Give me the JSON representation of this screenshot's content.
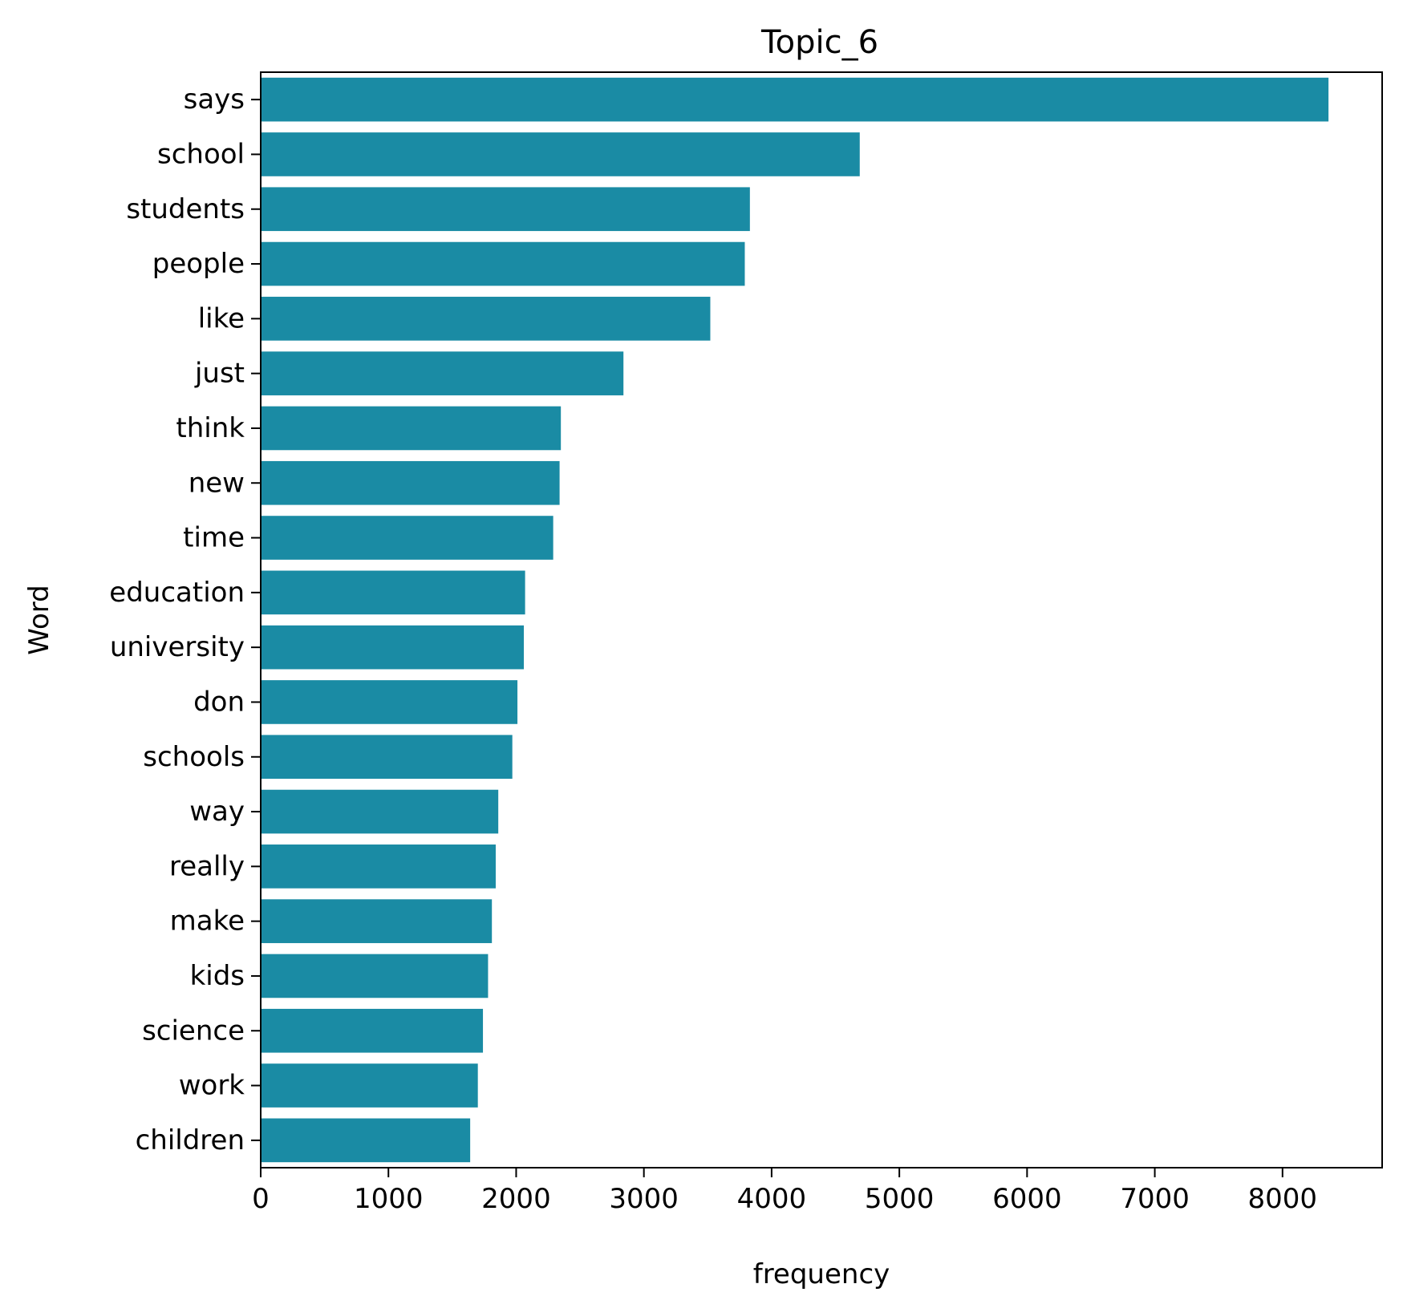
{
  "chart_data": {
    "type": "bar",
    "orientation": "horizontal",
    "title": "Topic_6",
    "xlabel": "frequency",
    "ylabel": "Word",
    "categories": [
      "says",
      "school",
      "students",
      "people",
      "like",
      "just",
      "think",
      "new",
      "time",
      "education",
      "university",
      "don",
      "schools",
      "way",
      "really",
      "make",
      "kids",
      "science",
      "work",
      "children"
    ],
    "values": [
      8360,
      4690,
      3830,
      3790,
      3520,
      2840,
      2350,
      2340,
      2290,
      2070,
      2060,
      2010,
      1970,
      1860,
      1840,
      1810,
      1780,
      1740,
      1700,
      1640
    ],
    "xticks": [
      0,
      1000,
      2000,
      3000,
      4000,
      5000,
      6000,
      7000,
      8000
    ],
    "xlim": [
      0,
      8780
    ],
    "grid": false,
    "bar_color": "#1a8ba4"
  }
}
